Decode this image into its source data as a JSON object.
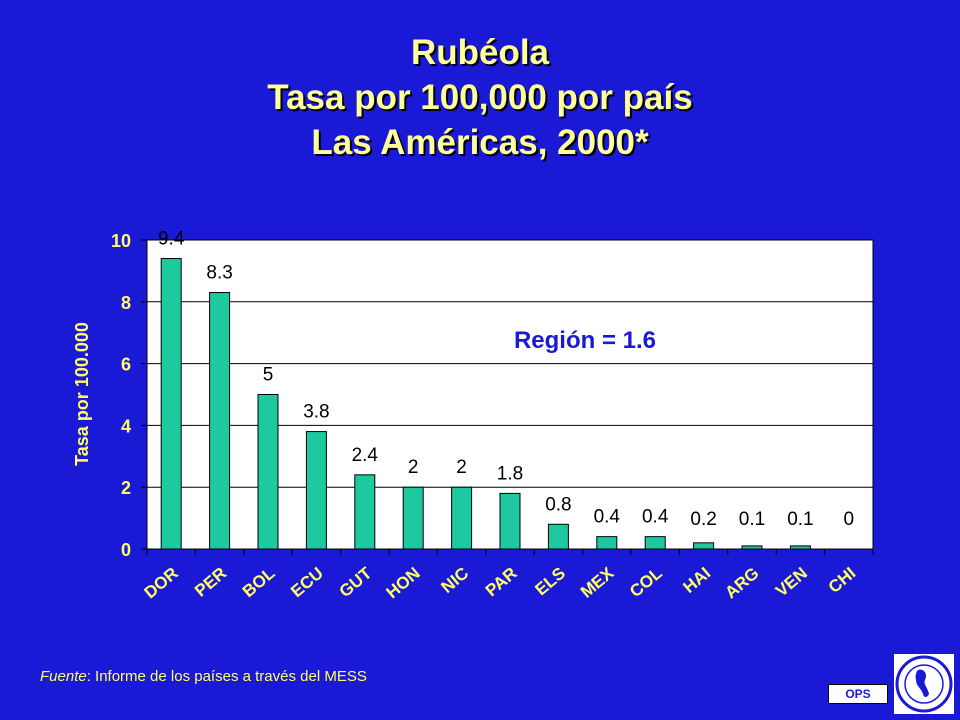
{
  "title": {
    "line1": "Rubéola",
    "line2": "Tasa por 100,000 por país",
    "line3": "Las Américas, 2000*"
  },
  "source": {
    "label": "Fuente",
    "text": ": Informe de los países a través del MESS"
  },
  "badge": {
    "label": "OPS"
  },
  "colors": {
    "background": "#1a1ad6",
    "title": "#ffff99",
    "axis_text": "#ffff66",
    "bar": "#1fc9a0",
    "plot_bg": "#ffffff",
    "annotation": "#1a1ad6"
  },
  "chart_data": {
    "type": "bar",
    "categories": [
      "DOR",
      "PER",
      "BOL",
      "ECU",
      "GUT",
      "HON",
      "NIC",
      "PAR",
      "ELS",
      "MEX",
      "COL",
      "HAI",
      "ARG",
      "VEN",
      "CHI"
    ],
    "values": [
      9.4,
      8.3,
      5,
      3.8,
      2.4,
      2,
      2,
      1.8,
      0.8,
      0.4,
      0.4,
      0.2,
      0.1,
      0.1,
      0
    ],
    "value_labels": [
      "9.4",
      "8.3",
      "5",
      "3.8",
      "2.4",
      "2",
      "2",
      "1.8",
      "0.8",
      "0.4",
      "0.4",
      "0.2",
      "0.1",
      "0.1",
      "0"
    ],
    "ylabel": "Tasa por 100.000",
    "ylim": [
      0,
      10
    ],
    "yticks": [
      0,
      2,
      4,
      6,
      8,
      10
    ],
    "grid": true,
    "annotation": "Región = 1.6"
  }
}
